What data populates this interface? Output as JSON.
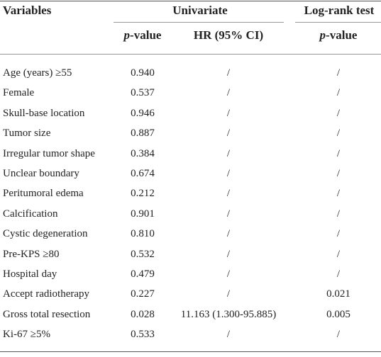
{
  "header": {
    "variables": "Variables",
    "univariate": "Univariate",
    "log_rank": "Log-rank test",
    "univariate_p": "p-value",
    "hr": "HR (95% CI)",
    "log_rank_p": "p-value"
  },
  "table": {
    "rows": [
      [
        "Age (years) ≥55",
        "0.940",
        "/",
        "/"
      ],
      [
        "Female",
        "0.537",
        "/",
        "/"
      ],
      [
        "Skull-base location",
        "0.946",
        "/",
        "/"
      ],
      [
        "Tumor size",
        "0.887",
        "/",
        "/"
      ],
      [
        "Irregular tumor shape",
        "0.384",
        "/",
        "/"
      ],
      [
        "Unclear boundary",
        "0.674",
        "/",
        "/"
      ],
      [
        "Peritumoral edema",
        "0.212",
        "/",
        "/"
      ],
      [
        "Calcification",
        "0.901",
        "/",
        "/"
      ],
      [
        "Cystic degeneration",
        "0.810",
        "/",
        "/"
      ],
      [
        "Pre-KPS ≥80",
        "0.532",
        "/",
        "/"
      ],
      [
        "Hospital day",
        "0.479",
        "/",
        "/"
      ],
      [
        "Accept radiotherapy",
        "0.227",
        "/",
        "0.021"
      ],
      [
        "Gross total resection",
        "0.028",
        "11.163 (1.300-95.885)",
        "0.005"
      ],
      [
        "Ki-67 ≥5%",
        "0.533",
        "/",
        "/"
      ]
    ]
  }
}
